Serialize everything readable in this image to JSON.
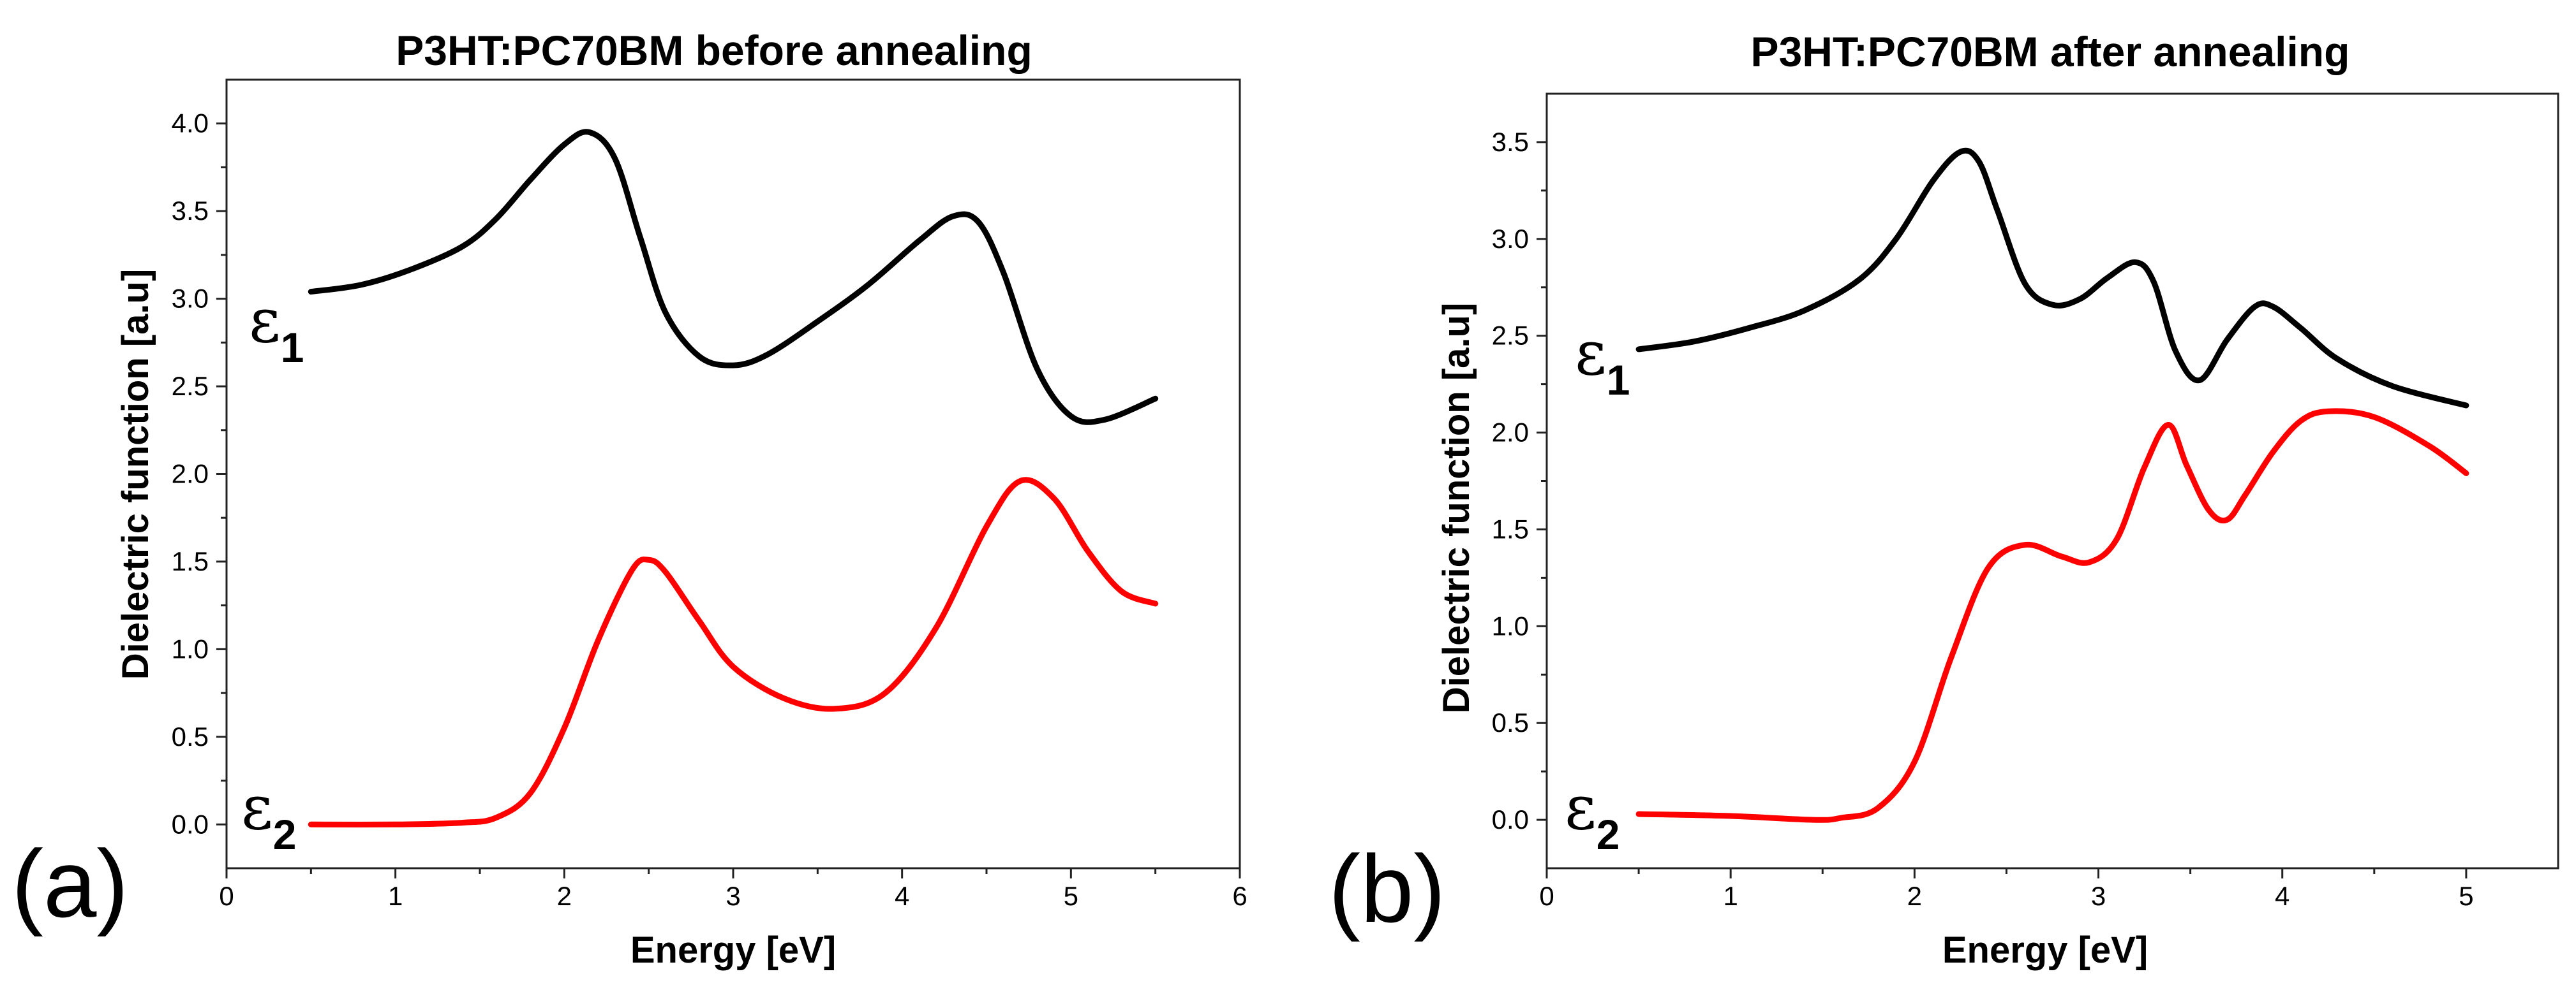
{
  "chart_data": [
    {
      "type": "line",
      "panel_label": "(a)",
      "title": "P3HT:PC70BM before annealing",
      "xlabel": "Energy [eV]",
      "ylabel": "Dielectric function [a.u]",
      "xlim": [
        0,
        6
      ],
      "ylim": [
        -0.25,
        4.25
      ],
      "xticks": [
        0,
        1,
        2,
        3,
        4,
        5,
        6
      ],
      "yticks": [
        0.0,
        0.5,
        1.0,
        1.5,
        2.0,
        2.5,
        3.0,
        3.5,
        4.0
      ],
      "xtick_labels": [
        "0",
        "1",
        "2",
        "3",
        "4",
        "5",
        "6"
      ],
      "ytick_labels": [
        "0.0",
        "0.5",
        "1.0",
        "1.5",
        "2.0",
        "2.5",
        "3.0",
        "3.5",
        "4.0"
      ],
      "series": [
        {
          "name": "ε1",
          "label_symbol": "ε",
          "label_sub": "1",
          "color": "#000000",
          "x": [
            0.5,
            0.8,
            1.1,
            1.4,
            1.6,
            1.8,
            2.0,
            2.15,
            2.3,
            2.45,
            2.6,
            2.8,
            3.0,
            3.2,
            3.5,
            3.8,
            4.1,
            4.3,
            4.45,
            4.6,
            4.8,
            5.0,
            5.2,
            5.5
          ],
          "y": [
            3.04,
            3.08,
            3.17,
            3.3,
            3.46,
            3.68,
            3.88,
            3.95,
            3.8,
            3.35,
            2.92,
            2.67,
            2.62,
            2.68,
            2.87,
            3.08,
            3.33,
            3.47,
            3.44,
            3.15,
            2.6,
            2.33,
            2.31,
            2.43
          ]
        },
        {
          "name": "ε2",
          "label_symbol": "ε",
          "label_sub": "2",
          "color": "#ff0000",
          "x": [
            0.5,
            1.0,
            1.4,
            1.6,
            1.8,
            2.0,
            2.2,
            2.4,
            2.5,
            2.6,
            2.8,
            3.0,
            3.3,
            3.6,
            3.9,
            4.2,
            4.5,
            4.7,
            4.9,
            5.1,
            5.3,
            5.5
          ],
          "y": [
            0.0,
            0.0,
            0.01,
            0.04,
            0.18,
            0.55,
            1.05,
            1.45,
            1.51,
            1.44,
            1.16,
            0.9,
            0.72,
            0.66,
            0.75,
            1.12,
            1.7,
            1.96,
            1.86,
            1.56,
            1.33,
            1.26
          ]
        }
      ]
    },
    {
      "type": "line",
      "panel_label": "(b)",
      "title": "P3HT:PC70BM after annealing",
      "xlabel": "Energy [eV]",
      "ylabel": "Dielectric function [a.u]",
      "xlim": [
        0,
        5.5
      ],
      "ylim": [
        -0.25,
        3.75
      ],
      "xticks": [
        0,
        1,
        2,
        3,
        4,
        5
      ],
      "yticks": [
        0.0,
        0.5,
        1.0,
        1.5,
        2.0,
        2.5,
        3.0,
        3.5
      ],
      "xtick_labels": [
        "0",
        "1",
        "2",
        "3",
        "4",
        "5"
      ],
      "ytick_labels": [
        "0.0",
        "0.5",
        "1.0",
        "1.5",
        "2.0",
        "2.5",
        "3.0",
        "3.5"
      ],
      "series": [
        {
          "name": "ε1",
          "label_symbol": "ε",
          "label_sub": "1",
          "color": "#000000",
          "x": [
            0.5,
            0.8,
            1.1,
            1.4,
            1.7,
            1.9,
            2.1,
            2.25,
            2.35,
            2.45,
            2.6,
            2.75,
            2.9,
            3.05,
            3.2,
            3.3,
            3.42,
            3.55,
            3.7,
            3.85,
            3.95,
            4.1,
            4.3,
            4.6,
            5.0
          ],
          "y": [
            2.43,
            2.47,
            2.54,
            2.63,
            2.79,
            3.0,
            3.3,
            3.45,
            3.4,
            3.15,
            2.77,
            2.66,
            2.69,
            2.8,
            2.88,
            2.78,
            2.42,
            2.27,
            2.48,
            2.65,
            2.65,
            2.54,
            2.38,
            2.24,
            2.14
          ]
        },
        {
          "name": "ε2",
          "label_symbol": "ε",
          "label_sub": "2",
          "color": "#ff0000",
          "x": [
            0.5,
            1.0,
            1.45,
            1.6,
            1.8,
            2.0,
            2.2,
            2.4,
            2.6,
            2.8,
            2.95,
            3.1,
            3.25,
            3.38,
            3.48,
            3.6,
            3.7,
            3.8,
            3.95,
            4.1,
            4.25,
            4.5,
            4.8,
            5.0
          ],
          "y": [
            0.03,
            0.02,
            0.0,
            0.01,
            0.06,
            0.3,
            0.84,
            1.3,
            1.42,
            1.36,
            1.33,
            1.45,
            1.82,
            2.04,
            1.83,
            1.6,
            1.55,
            1.68,
            1.9,
            2.06,
            2.11,
            2.08,
            1.93,
            1.79
          ]
        }
      ]
    }
  ]
}
